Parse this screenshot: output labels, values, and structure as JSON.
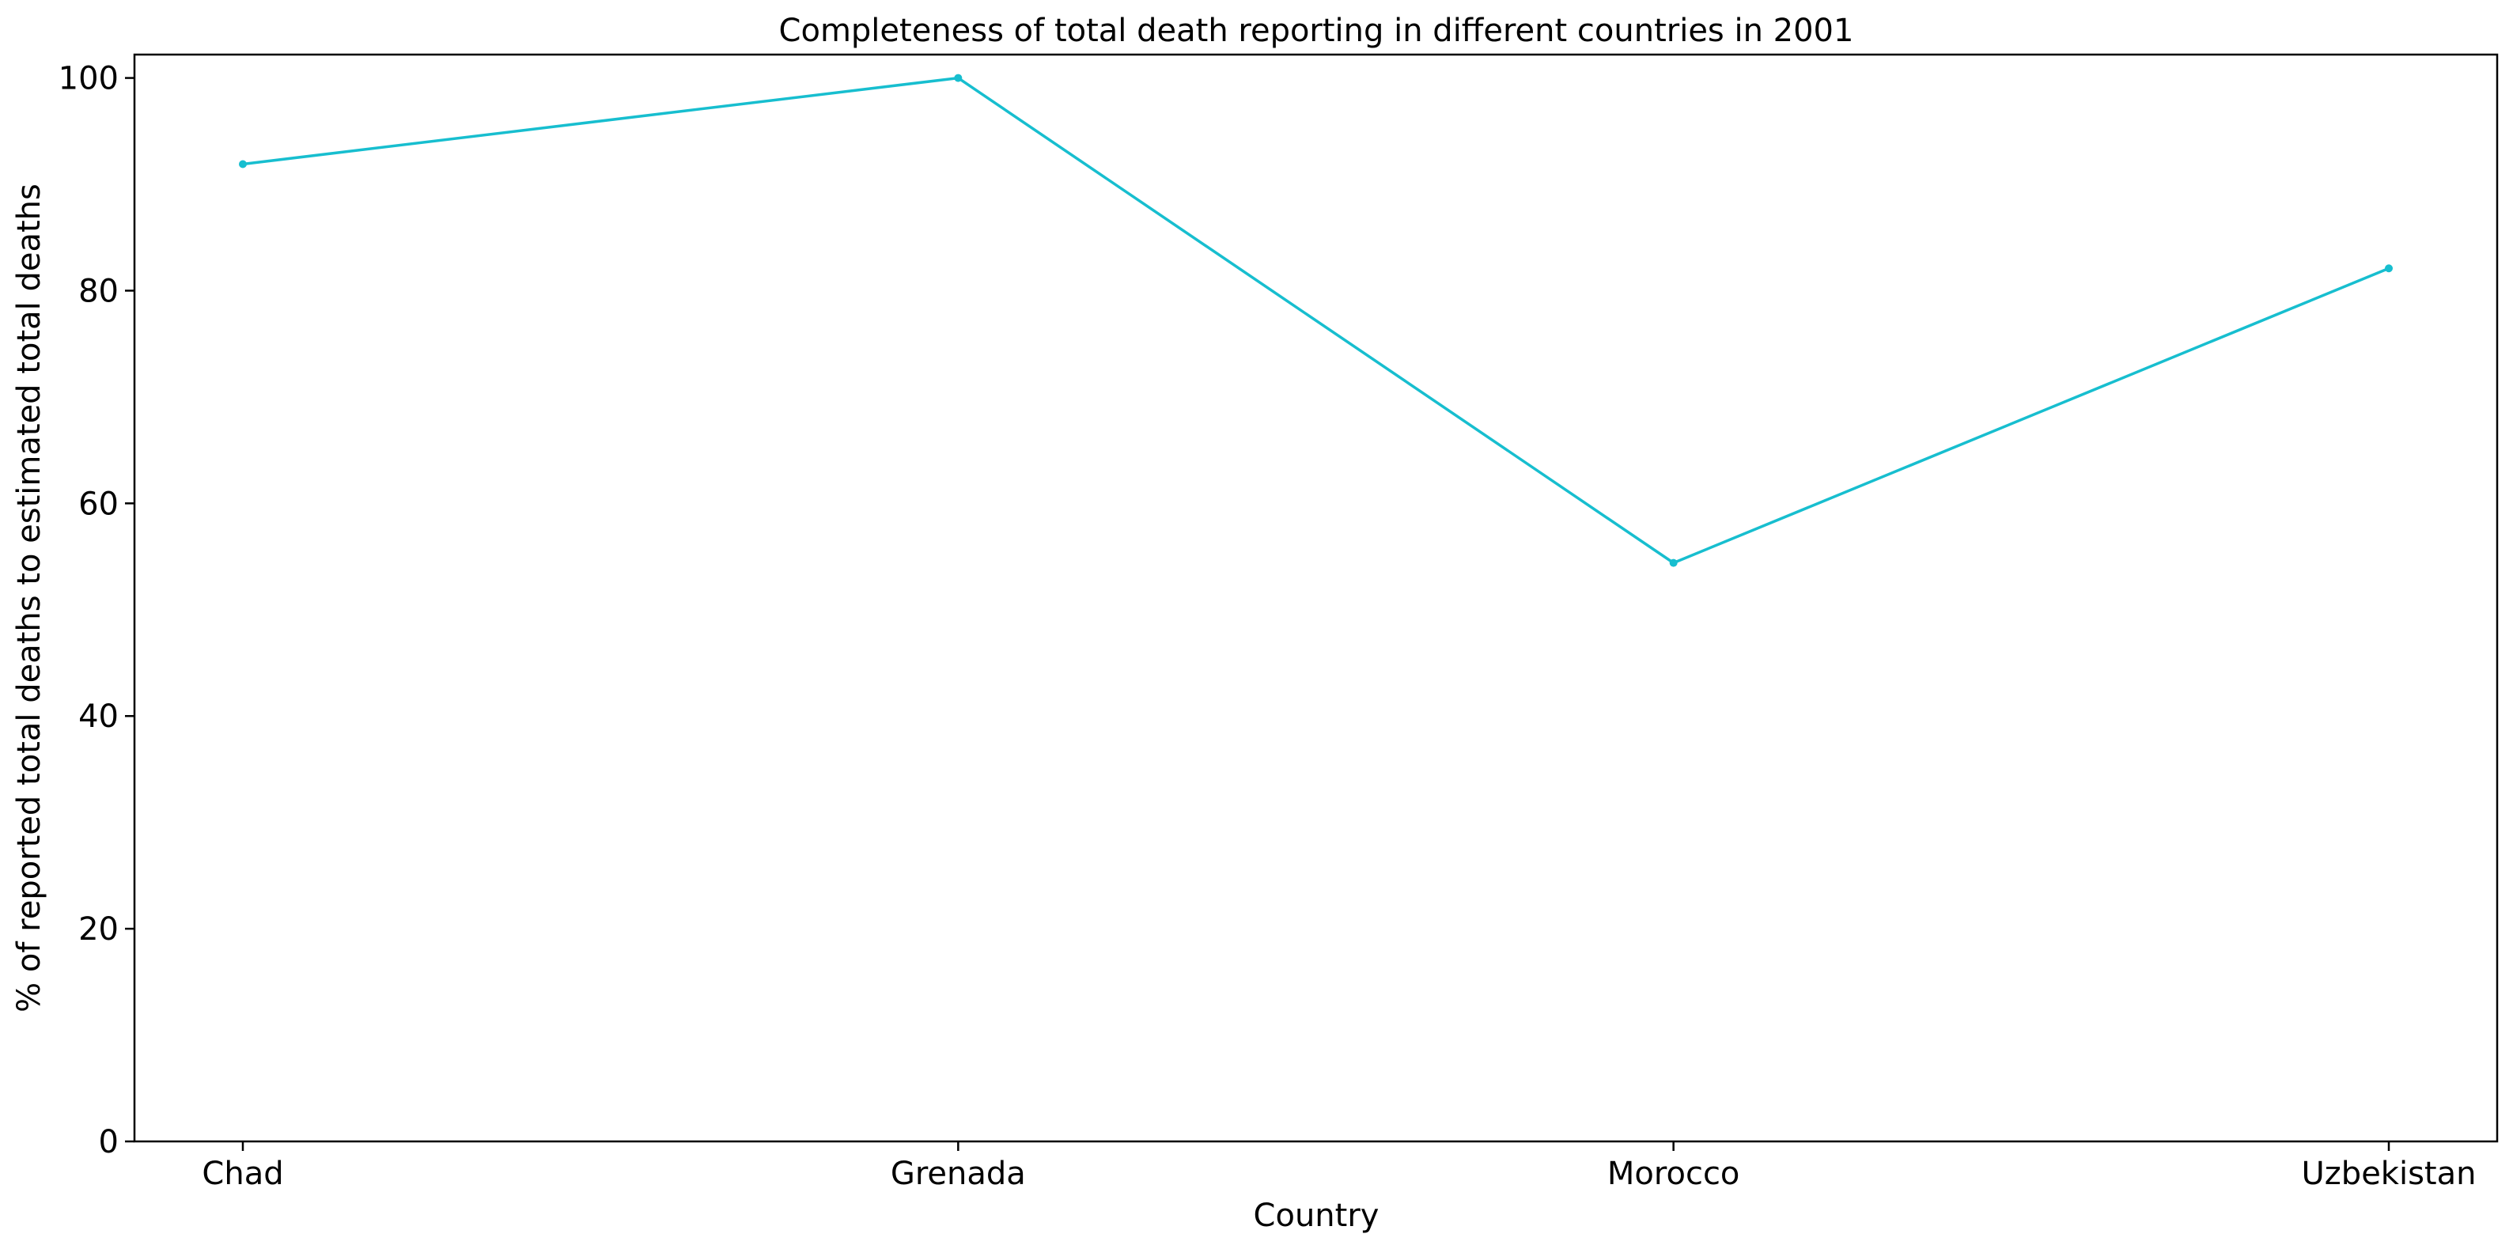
{
  "chart_data": {
    "type": "line",
    "title": "Completeness of total death reporting in different countries in 2001",
    "xlabel": "Country",
    "ylabel": "% of reported total deaths to estimated total deaths",
    "categories": [
      "Chad",
      "Grenada",
      "Morocco",
      "Uzbekistan"
    ],
    "series": [
      {
        "values": [
          91.9,
          100.0,
          54.4,
          82.1
        ]
      }
    ],
    "ylim": [
      0,
      102.2
    ],
    "yticks": [
      0,
      20,
      40,
      60,
      80,
      100
    ],
    "ytick_labels": [
      "0",
      "20",
      "40",
      "60",
      "80",
      "100"
    ],
    "grid": false,
    "legend": "none",
    "colors": {
      "line": "#17becf",
      "axes": "#000000",
      "background": "#ffffff"
    }
  }
}
